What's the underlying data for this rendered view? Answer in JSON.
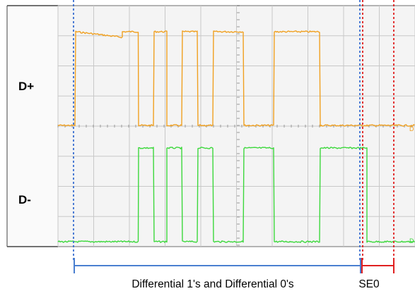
{
  "labels": {
    "dplus": "D+",
    "dminus": "D-",
    "differential_range": "Differential 1's and Differential 0's",
    "se0": "SE0",
    "edge_tick": "D"
  },
  "colors": {
    "dplus_trace": "#f0a020",
    "dminus_trace": "#3cd83c",
    "grid": "#c8c8c8",
    "screen_bg": "#f4f4f4",
    "blue_marker": "#3a6fd0",
    "red_marker": "#e02020",
    "bracket_blue": "#4a7fd0"
  },
  "chart_data": {
    "type": "line",
    "x_divisions": 10,
    "y_divisions": 8,
    "grid": true,
    "series": [
      {
        "name": "D+",
        "levels": [
          0,
          1,
          1,
          1,
          1,
          0,
          1,
          0,
          1,
          0,
          1,
          0,
          1,
          1,
          0,
          1,
          1,
          0,
          0,
          0,
          0
        ]
      },
      {
        "name": "D-",
        "levels": [
          0,
          0,
          0,
          0,
          0,
          1,
          0,
          1,
          0,
          1,
          0,
          1,
          0,
          0,
          1,
          0,
          0,
          1,
          1,
          0,
          0
        ]
      }
    ]
  }
}
